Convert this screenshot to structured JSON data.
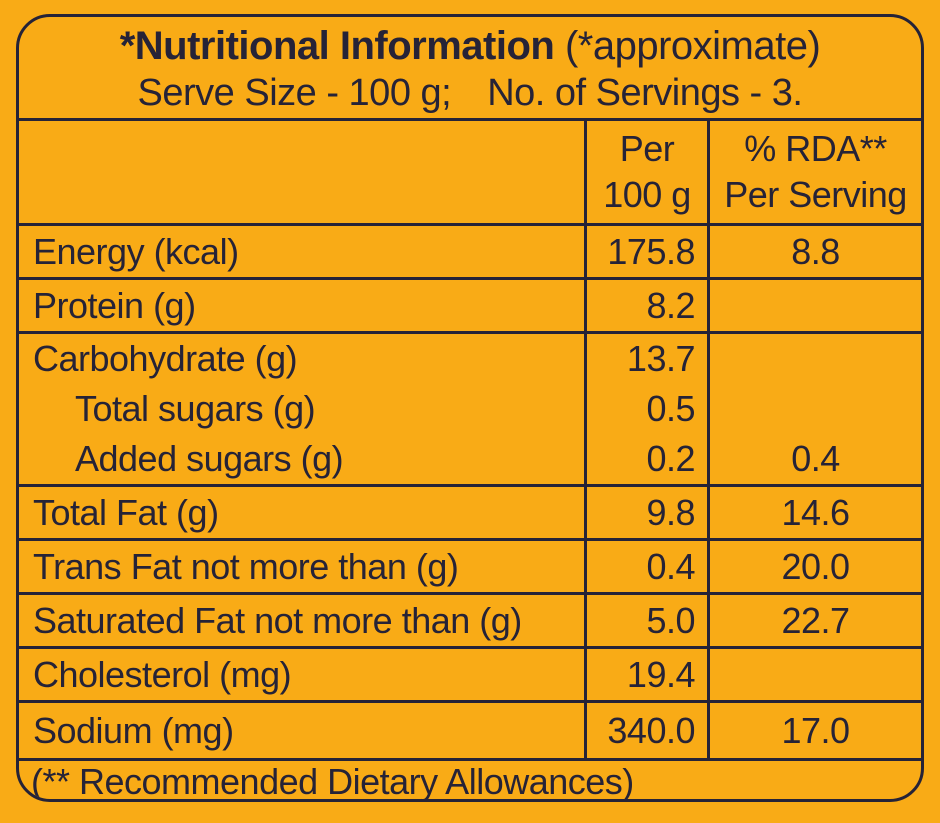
{
  "colors": {
    "background": "#F9AB16",
    "ink": "#262337"
  },
  "header": {
    "title_bold": "*Nutritional Information",
    "title_note": "(*approximate)",
    "serve_size": "Serve Size - 100 g;",
    "servings": "No. of Servings - 3."
  },
  "table": {
    "col_per_line1": "Per",
    "col_per_line2": "100 g",
    "col_rda_line1": "% RDA**",
    "col_rda_line2": "Per Serving",
    "rows": [
      {
        "label": "Energy (kcal)",
        "per_100g": "175.8",
        "rda_per_serving": "8.8"
      },
      {
        "label": "Protein (g)",
        "per_100g": "8.2",
        "rda_per_serving": ""
      },
      {
        "label": "Carbohydrate (g)",
        "per_100g": "13.7",
        "rda_per_serving": ""
      },
      {
        "label": "Total sugars (g)",
        "per_100g": "0.5",
        "rda_per_serving": ""
      },
      {
        "label": "Added sugars (g)",
        "per_100g": "0.2",
        "rda_per_serving": "0.4"
      },
      {
        "label": "Total Fat (g)",
        "per_100g": "9.8",
        "rda_per_serving": "14.6"
      },
      {
        "label": "Trans Fat not more than (g)",
        "per_100g": "0.4",
        "rda_per_serving": "20.0"
      },
      {
        "label": "Saturated Fat not more than (g)",
        "per_100g": "5.0",
        "rda_per_serving": "22.7"
      },
      {
        "label": "Cholesterol (mg)",
        "per_100g": "19.4",
        "rda_per_serving": ""
      },
      {
        "label": "Sodium (mg)",
        "per_100g": "340.0",
        "rda_per_serving": "17.0"
      }
    ]
  },
  "footer": {
    "note": "(** Recommended Dietary Allowances)"
  }
}
